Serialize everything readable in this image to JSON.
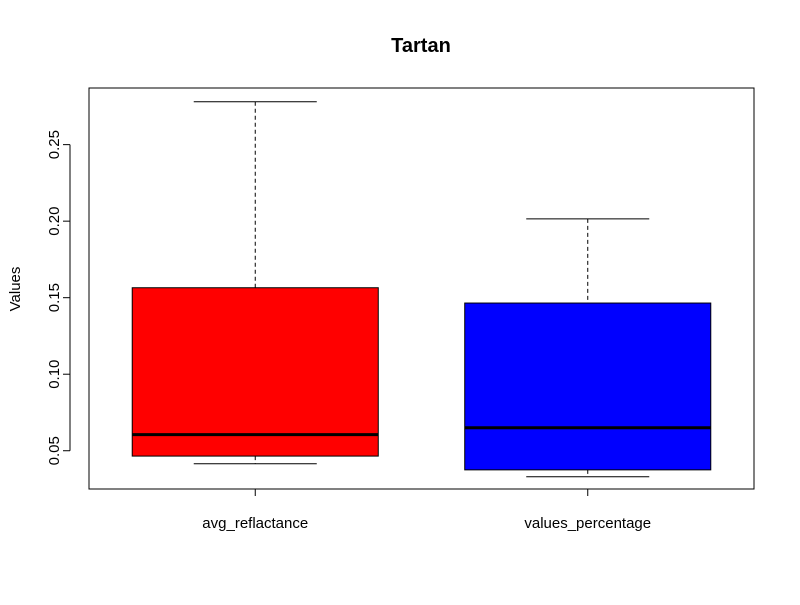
{
  "chart_data": {
    "type": "boxplot",
    "title": "Tartan",
    "xlabel": "",
    "ylabel": "Values",
    "ylim": [
      0.025,
      0.287
    ],
    "yticks": [
      0.05,
      0.1,
      0.15,
      0.2,
      0.25
    ],
    "ytick_labels": [
      "0.05",
      "0.10",
      "0.15",
      "0.20",
      "0.25"
    ],
    "grid": false,
    "legend": "none",
    "categories": [
      "avg_reflactance",
      "values_percentage"
    ],
    "boxes": [
      {
        "category": "avg_reflactance",
        "whisker_low": 0.0415,
        "q1": 0.0465,
        "median": 0.0605,
        "q3": 0.1565,
        "whisker_high": 0.278,
        "color": "#ff0000"
      },
      {
        "category": "values_percentage",
        "whisker_low": 0.033,
        "q1": 0.0375,
        "median": 0.065,
        "q3": 0.1465,
        "whisker_high": 0.2015,
        "color": "#0000ff"
      }
    ]
  }
}
